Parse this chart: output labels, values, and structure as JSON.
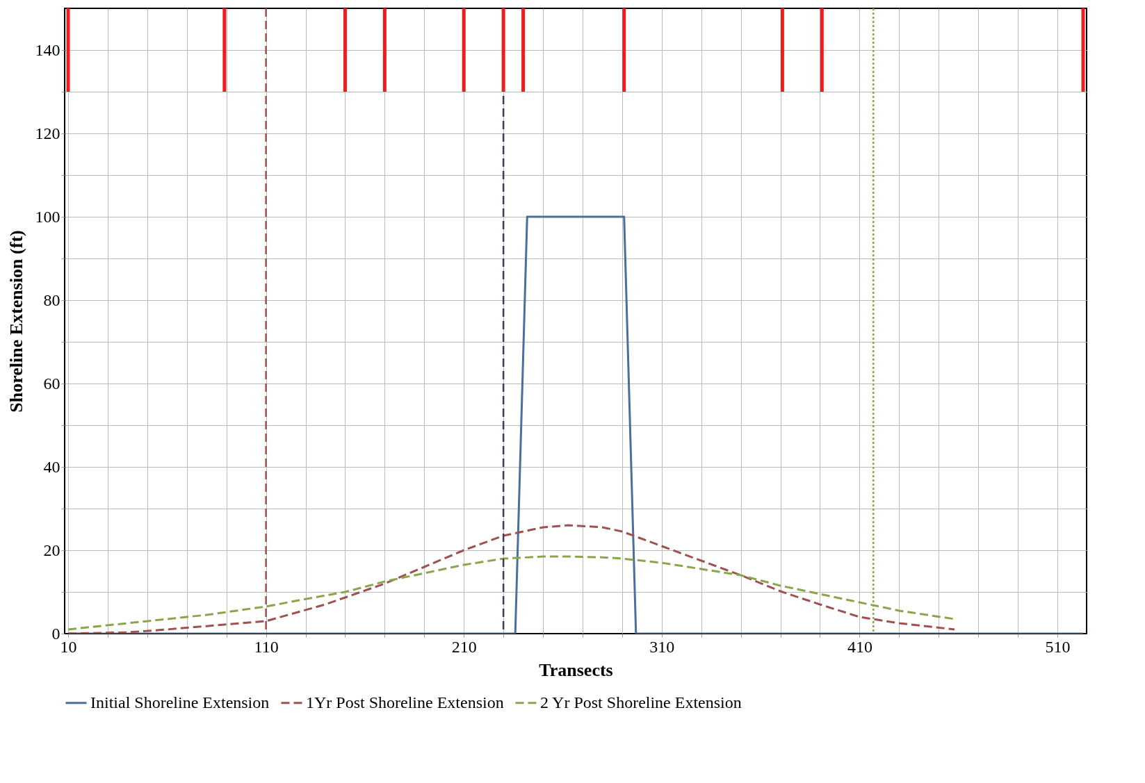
{
  "chart_data": {
    "type": "line",
    "xlabel": "Transects",
    "ylabel": "Shoreline Extension (ft)",
    "xlim": [
      10,
      523
    ],
    "ylim": [
      0,
      150
    ],
    "xticks": [
      10,
      {
        "value": 30,
        "label": null
      },
      {
        "value": 50,
        "label": null
      },
      {
        "value": 70,
        "label": null
      },
      {
        "value": 90,
        "label": null
      },
      110,
      {
        "value": 130,
        "label": null
      },
      {
        "value": 150,
        "label": null
      },
      {
        "value": 170,
        "label": null
      },
      {
        "value": 190,
        "label": null
      },
      210,
      {
        "value": 230,
        "label": null
      },
      {
        "value": 250,
        "label": null
      },
      {
        "value": 270,
        "label": null
      },
      {
        "value": 290,
        "label": null
      },
      310,
      {
        "value": 330,
        "label": null
      },
      {
        "value": 350,
        "label": null
      },
      {
        "value": 370,
        "label": null
      },
      {
        "value": 390,
        "label": null
      },
      410,
      {
        "value": 430,
        "label": null
      },
      {
        "value": 450,
        "label": null
      },
      {
        "value": 470,
        "label": null
      },
      {
        "value": 490,
        "label": null
      },
      510
    ],
    "yticks": [
      0,
      {
        "value": 10,
        "label": null
      },
      20,
      {
        "value": 30,
        "label": null
      },
      40,
      {
        "value": 50,
        "label": null
      },
      60,
      {
        "value": 70,
        "label": null
      },
      80,
      {
        "value": 90,
        "label": null
      },
      100,
      {
        "value": 110,
        "label": null
      },
      120,
      {
        "value": 130,
        "label": null
      },
      140
    ],
    "grid": true,
    "legend": "bottom",
    "series": [
      {
        "name": "Initial Shoreline Extension",
        "color": "#4a6f9c",
        "line_style": "solid",
        "x": [
          10,
          236,
          242,
          291,
          297,
          523
        ],
        "values": [
          0,
          0,
          100,
          100,
          0,
          0
        ]
      },
      {
        "name": "1Yr Post Shoreline Extension",
        "color": "#a0504f",
        "line_style": "dashed",
        "x": [
          10,
          40,
          60,
          80,
          110,
          140,
          170,
          190,
          210,
          230,
          250,
          263,
          280,
          290,
          310,
          330,
          350,
          371,
          390,
          410,
          430,
          458
        ],
        "values": [
          0,
          0.3,
          1,
          1.8,
          3,
          7,
          12,
          16,
          20,
          23.5,
          25.5,
          26,
          25.5,
          24.5,
          21,
          17.5,
          14,
          10,
          7,
          4,
          2.5,
          1
        ]
      },
      {
        "name": "2 Yr Post Shoreline Extension",
        "color": "#8aa64a",
        "line_style": "dashed",
        "x": [
          10,
          40,
          60,
          80,
          110,
          130,
          150,
          170,
          190,
          210,
          230,
          250,
          263,
          280,
          290,
          310,
          330,
          350,
          370,
          390,
          410,
          430,
          458
        ],
        "values": [
          1,
          2.5,
          3.5,
          4.5,
          6.5,
          8.3,
          10,
          12.5,
          14.5,
          16.5,
          18,
          18.5,
          18.5,
          18.3,
          18,
          17,
          15.5,
          14,
          11.5,
          9.5,
          7.5,
          5.5,
          3.5
        ]
      },
      {
        "type": "bar",
        "color": "#ee1c1c",
        "x": [
          10,
          89,
          150,
          170,
          210,
          230,
          240,
          291,
          371,
          391,
          523
        ],
        "values": [
          20,
          20,
          20,
          20,
          20,
          20,
          20,
          20,
          20,
          20,
          20
        ],
        "base": [
          130,
          130,
          130,
          130,
          130,
          130,
          130,
          130,
          130,
          130,
          130
        ]
      }
    ],
    "ref_lines": [
      {
        "axis": "x",
        "value": 110,
        "color": "#a0504f",
        "line_style": "dashed"
      },
      {
        "axis": "x",
        "value": 230,
        "color": "#3b3b5b",
        "line_style": "dashed"
      },
      {
        "axis": "x",
        "value": 417,
        "color": "#8aa64a",
        "line_style": "dotted"
      }
    ]
  }
}
